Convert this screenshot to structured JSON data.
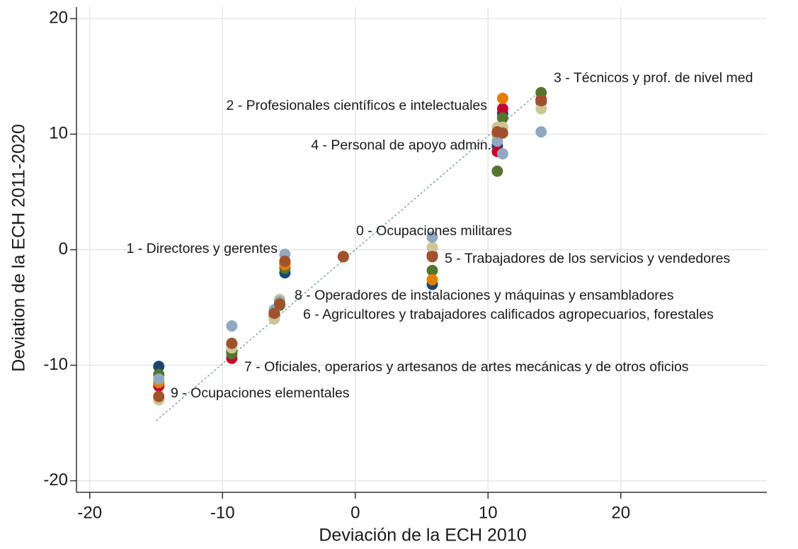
{
  "chart_data": {
    "type": "scatter",
    "x_label": "Deviación de la ECH 2010",
    "y_label": "Deviation de la ECH 2011-2020",
    "xlim": [
      -21,
      31
    ],
    "ylim": [
      -21,
      21
    ],
    "xticks": [
      -20,
      -10,
      0,
      10,
      20
    ],
    "yticks": [
      -20,
      -10,
      0,
      10,
      20
    ],
    "grid": true,
    "x": [
      -14.8,
      -9.3,
      -6.1,
      -5.7,
      -5.3,
      -0.9,
      5.8,
      10.7,
      11.1,
      14.0
    ],
    "series": [
      {
        "color": "#1a476f",
        "values": [
          -10.1,
          -8.8,
          -5.7,
          -4.8,
          -2.0,
          -0.6,
          -3.0,
          9.0,
          11.8,
          12.8
        ]
      },
      {
        "color": "#c10534",
        "values": [
          -11.8,
          -9.4,
          -5.6,
          -4.7,
          -1.2,
          -0.6,
          -0.5,
          8.5,
          12.2,
          13.0
        ]
      },
      {
        "color": "#55752f",
        "values": [
          -10.8,
          -9.0,
          -5.8,
          -4.8,
          -1.6,
          -0.6,
          -1.8,
          6.8,
          11.4,
          13.6
        ]
      },
      {
        "color": "#e37e00",
        "values": [
          -11.5,
          -8.2,
          -5.4,
          -4.6,
          -1.3,
          -0.6,
          -2.6,
          10.0,
          13.1,
          12.9
        ]
      },
      {
        "color": "#cec597",
        "values": [
          -13.0,
          -8.5,
          -6.0,
          -4.3,
          -1.0,
          -0.6,
          0.2,
          10.6,
          10.6,
          12.2
        ]
      },
      {
        "color": "#90a8c0",
        "values": [
          -11.2,
          -6.6,
          -5.2,
          -4.5,
          -0.4,
          -0.6,
          1.1,
          9.4,
          8.3,
          10.2
        ]
      },
      {
        "color": "#a0522d",
        "values": [
          -12.7,
          -8.1,
          -5.5,
          -4.7,
          -1.0,
          -0.6,
          -0.6,
          10.2,
          10.1,
          12.9
        ]
      }
    ],
    "fit_line": {
      "color": "#7fa8a0",
      "x": [
        -15,
        14
      ],
      "values": [
        -14.8,
        13.8
      ]
    },
    "annotations": [
      "9 - Ocupaciones elementales",
      "7 - Oficiales, operarios y artesanos de artes mecánicas y de otros oficios",
      "6 - Agricultores y trabajadores calificados agropecuarios, forestales",
      "8 - Operadores de instalaciones y máquinas y ensambladores",
      "1 - Directores y gerentes",
      "0 - Ocupaciones militares",
      "5 - Trabajadores de los servicios y vendedores",
      "4 - Personal de apoyo admin.",
      "2 - Profesionales científicos e intelectuales",
      "3 - Técnicos y prof. de nivel med"
    ]
  }
}
